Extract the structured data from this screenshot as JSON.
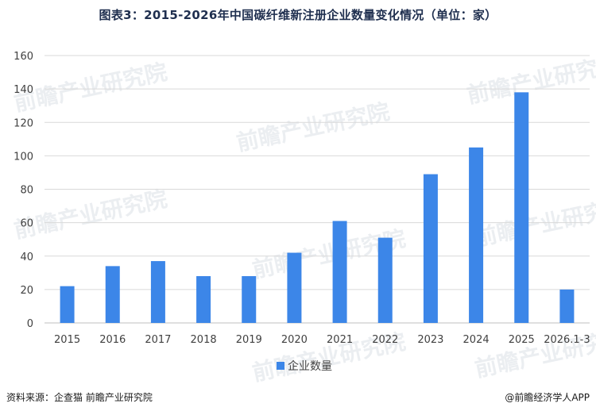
{
  "title": "图表3：2015-2026年中国碳纤维新注册企业数量变化情况（单位：家）",
  "footer": {
    "source": "资料来源：企查猫  前瞻产业研究院",
    "brand": "@前瞻经济学人APP"
  },
  "watermark_text": "前瞻产业研究院",
  "chart_data": {
    "type": "bar",
    "categories": [
      "2015",
      "2016",
      "2017",
      "2018",
      "2019",
      "2020",
      "2021",
      "2022",
      "2023",
      "2024",
      "2025",
      "2026.1-3"
    ],
    "series": [
      {
        "name": "企业数量",
        "values": [
          22,
          34,
          37,
          28,
          28,
          42,
          61,
          51,
          89,
          105,
          138,
          20
        ],
        "color": "#3c86e8"
      }
    ],
    "title": "图表3：2015-2026年中国碳纤维新注册企业数量变化情况（单位：家）",
    "xlabel": "",
    "ylabel": "",
    "ylim": [
      0,
      160
    ],
    "yticks": [
      0,
      20,
      40,
      60,
      80,
      100,
      120,
      140,
      160
    ],
    "grid": true,
    "legend": "bottom"
  }
}
